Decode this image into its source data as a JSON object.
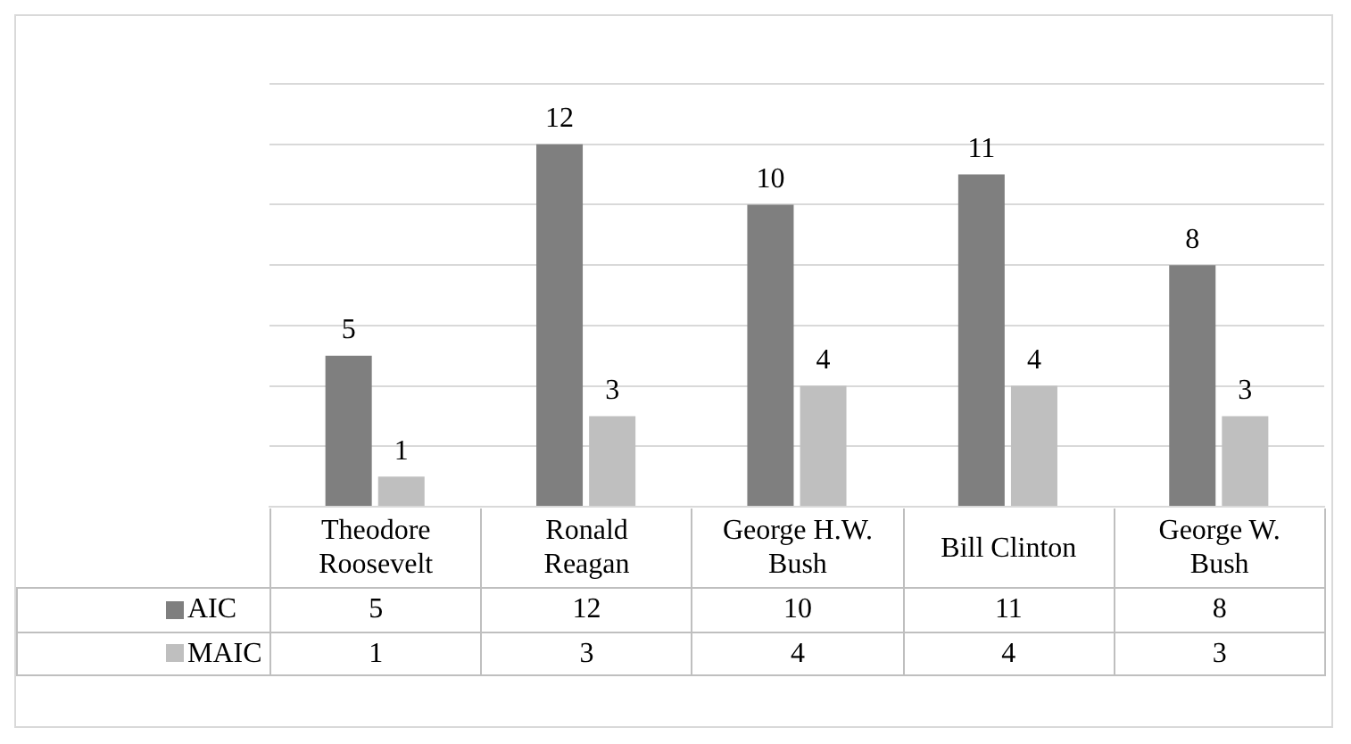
{
  "chart_data": {
    "type": "bar",
    "categories": [
      "Theodore Roosevelt",
      "Ronald Reagan",
      "George H.W. Bush",
      "Bill Clinton",
      "George W. Bush"
    ],
    "series": [
      {
        "name": "AIC",
        "color": "#7f7f7f",
        "values": [
          5,
          12,
          10,
          11,
          8
        ],
        "value_labels": [
          "5",
          "12",
          "10",
          "11",
          "8"
        ]
      },
      {
        "name": "MAIC",
        "color": "#bfbfbf",
        "values": [
          1,
          3,
          4,
          4,
          3
        ],
        "value_labels": [
          "1",
          "3",
          "4",
          "4",
          "3"
        ]
      }
    ],
    "annotations": [
      {
        "text": "5",
        "x": "Theodore Roosevelt",
        "y": 5
      },
      {
        "text": "12",
        "x": "Ronald Reagan",
        "y": 12
      },
      {
        "text": "10",
        "x": "George H.W. Bush",
        "y": 10
      },
      {
        "text": "11",
        "x": "Bill Clinton",
        "y": 11
      },
      {
        "text": "8",
        "x": "George W. Bush",
        "y": 8
      },
      {
        "text": "1",
        "x": "Theodore Roosevelt",
        "y": 1
      },
      {
        "text": "3",
        "x": "Ronald Reagan",
        "y": 3
      },
      {
        "text": "4",
        "x": "George H.W. Bush",
        "y": 4
      },
      {
        "text": "4",
        "x": "Bill Clinton",
        "y": 4
      },
      {
        "text": "3",
        "x": "George W. Bush",
        "y": 3
      }
    ],
    "ylim": [
      0,
      14
    ],
    "yticks": [
      {
        "value": 0,
        "label": null
      },
      {
        "value": 2,
        "label": null
      },
      {
        "value": 4,
        "label": null
      },
      {
        "value": 6,
        "label": null
      },
      {
        "value": 8,
        "label": null
      },
      {
        "value": 10,
        "label": null
      },
      {
        "value": 12,
        "label": null
      },
      {
        "value": 14,
        "label": null
      }
    ],
    "grid": "y",
    "tick_labels": false,
    "data_labels": true,
    "legend": "bottom"
  }
}
